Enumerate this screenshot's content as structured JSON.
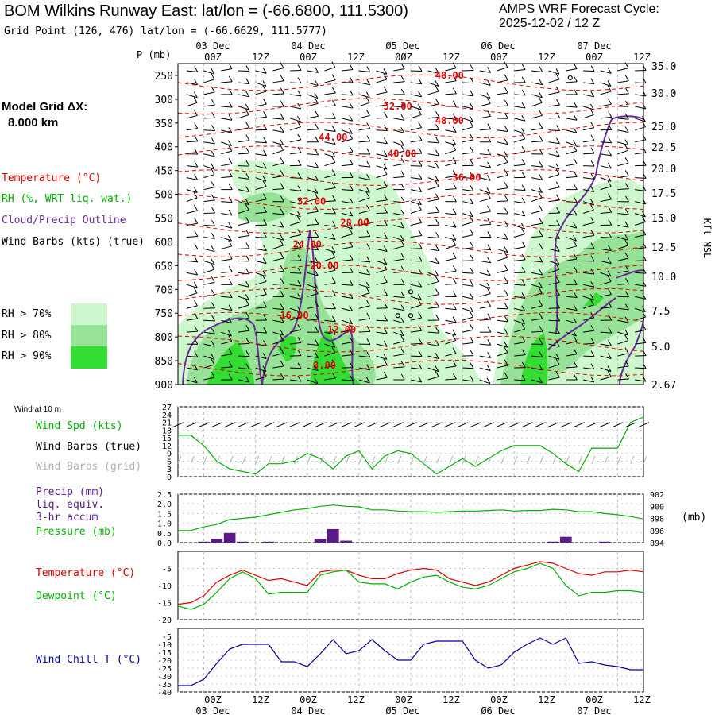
{
  "header": {
    "title": "BOM Wilkins Runway East:  lat/lon = (-66.6800, 111.5300)",
    "gridpoint": "Grid Point (126, 476) lat/lon = (-66.6629, 111.5777)",
    "cycle_line1": "AMPS WRF Forecast Cycle:",
    "cycle_line2": "2025-12-02 / 12  Z"
  },
  "model_grid": {
    "line1": "Model Grid ΔX:",
    "line2": "8.000 km"
  },
  "legend": {
    "temperature": "Temperature (°C)",
    "rh": "RH (%, WRT liq. wat.)",
    "cloud": "Cloud/Precip Outline",
    "wind": "Wind Barbs (kts) (true)",
    "rh70": "RH > 70%",
    "rh80": "RH > 80%",
    "rh90": "RH > 90%"
  },
  "colors": {
    "temperature": "#e00000",
    "rh": "#00b000",
    "cloud": "#6a2a9a",
    "wind": "#000000",
    "grid_wind": "#b0b0b0",
    "rh70": "#cdf7cd",
    "rh80": "#96e296",
    "rh90": "#33dd33",
    "wind_chill": "#0000a0",
    "precip": "#5a1a8a"
  },
  "time_axis": {
    "top_dates": [
      "03 Dec",
      "04 Dec",
      "Ø5 Dec",
      "Ø6 Dec",
      "07 Dec"
    ],
    "ticks": [
      "00Z",
      "12Z",
      "00Z",
      "12Z",
      "ØØZ",
      "12Z",
      "00Z",
      "12Z",
      "00Z",
      "12Z"
    ],
    "bottom_ticks": [
      "00Z",
      "12Z",
      "00Z",
      "12Z",
      "00Z",
      "12Z",
      "00Z",
      "12Z",
      "00Z",
      "12Z"
    ],
    "bottom_dates": [
      "03 Dec",
      "04 Dec",
      "Ø5 Dec",
      "Ø6 Dec",
      "07 Dec"
    ]
  },
  "chart_data": [
    {
      "type": "heatmap",
      "name": "vertical-cross-section",
      "ylabel": "P (mb)",
      "ylabel_right": "Kft MSL",
      "pressure_levels": [
        250,
        300,
        350,
        400,
        450,
        500,
        550,
        600,
        650,
        700,
        750,
        800,
        850,
        900
      ],
      "height_kft": [
        "35.0",
        "30.0",
        "25.0",
        "22.5",
        "20.0",
        "17.5",
        "15.0",
        "12.5",
        "10.0",
        "7.5",
        "5.0",
        "2.67"
      ],
      "temperature_contour_labels": [
        {
          "label": "48.00",
          "t_hours": 63,
          "p": 250
        },
        {
          "label": "52.00",
          "t_hours": 51,
          "p": 315
        },
        {
          "label": "48.00",
          "t_hours": 63,
          "p": 345
        },
        {
          "label": "44.00",
          "t_hours": 36,
          "p": 380
        },
        {
          "label": "40.00",
          "t_hours": 52,
          "p": 415
        },
        {
          "label": "36.00",
          "t_hours": 67,
          "p": 465
        },
        {
          "label": "32.00",
          "t_hours": 31,
          "p": 515
        },
        {
          "label": "28.00",
          "t_hours": 41,
          "p": 560
        },
        {
          "label": "24.00",
          "t_hours": 30,
          "p": 605
        },
        {
          "label": "20.00",
          "t_hours": 34,
          "p": 650
        },
        {
          "label": "16.00",
          "t_hours": 27,
          "p": 755
        },
        {
          "label": "12.00",
          "t_hours": 38,
          "p": 785
        },
        {
          "label": "8.00",
          "t_hours": 34,
          "p": 860
        }
      ]
    },
    {
      "type": "line",
      "name": "wind-10m",
      "title": "Wind at 10 m",
      "series_labels": [
        "Wind Spd (kts)",
        "Wind Barbs (true)",
        "Wind Barbs (grid)"
      ],
      "yticks": [
        "27",
        "24",
        "21",
        "18",
        "15",
        "12",
        "9",
        "6",
        "3",
        "0"
      ],
      "ylim": [
        0,
        27
      ],
      "t_hours": [
        0,
        3,
        6,
        9,
        12,
        15,
        18,
        21,
        24,
        27,
        30,
        33,
        36,
        39,
        42,
        45,
        48,
        51,
        54,
        57,
        60,
        63,
        66,
        69,
        72,
        75,
        78,
        81,
        84,
        87,
        90,
        93,
        96,
        99,
        102,
        105,
        108
      ],
      "wind_speed_kts": [
        16,
        16,
        12,
        6,
        3,
        2,
        1,
        5,
        5,
        6,
        9,
        7,
        3,
        8,
        10,
        3,
        8,
        10,
        9,
        5,
        1,
        4,
        7,
        4,
        7,
        10,
        12,
        12,
        12,
        9,
        5,
        2,
        11,
        11,
        11,
        21,
        23
      ]
    },
    {
      "type": "bar",
      "name": "precip-pressure",
      "series_labels": [
        "Precip (mm)",
        "liq. equiv.",
        "3-hr accum",
        "Pressure (mb)"
      ],
      "precip_yticks": [
        "2.5",
        "2.0",
        "1.5",
        "1.0",
        "0.5",
        "0.0"
      ],
      "pressure_yticks": [
        "902",
        "900",
        "898",
        "896",
        "894"
      ],
      "pressure_unit": "(mb)",
      "t_hours": [
        0,
        3,
        6,
        9,
        12,
        15,
        18,
        21,
        24,
        27,
        30,
        33,
        36,
        39,
        42,
        45,
        48,
        51,
        54,
        57,
        60,
        63,
        66,
        69,
        72,
        75,
        78,
        81,
        84,
        87,
        90,
        93,
        96,
        99,
        102,
        105,
        108
      ],
      "precip_mm": [
        0,
        0,
        0.05,
        0.2,
        0.5,
        0.05,
        0,
        0.05,
        0,
        0,
        0,
        0.2,
        0.7,
        0.1,
        0,
        0,
        0,
        0,
        0,
        0,
        0,
        0,
        0,
        0,
        0,
        0,
        0,
        0,
        0,
        0.05,
        0.3,
        0,
        0,
        0.05,
        0,
        0,
        0
      ],
      "pressure_mb": [
        896,
        896,
        896.6,
        897,
        897.8,
        898,
        898.2,
        898.6,
        899,
        899.4,
        899.6,
        900,
        900.2,
        900,
        899.9,
        899.4,
        899.4,
        899.2,
        899.1,
        899.1,
        899,
        899.1,
        899.2,
        899.2,
        899.3,
        899.4,
        899.2,
        899.3,
        899.3,
        899.5,
        899.4,
        899.1,
        899.1,
        898.8,
        898.6,
        898.3,
        897.9
      ],
      "precip_ylim": [
        0,
        2.5
      ],
      "pressure_ylim": [
        894,
        902
      ]
    },
    {
      "type": "line",
      "name": "temperature-dewpoint",
      "series_labels": [
        "Temperature (°C)",
        "Dewpoint (°C)"
      ],
      "yticks": [
        "-5",
        "-10",
        "-15",
        "-20"
      ],
      "ylim": [
        -20,
        0
      ],
      "t_hours": [
        0,
        3,
        6,
        9,
        12,
        15,
        18,
        21,
        24,
        27,
        30,
        33,
        36,
        39,
        42,
        45,
        48,
        51,
        54,
        57,
        60,
        63,
        66,
        69,
        72,
        75,
        78,
        81,
        84,
        87,
        90,
        93,
        96,
        99,
        102,
        105,
        108
      ],
      "temperature": [
        -15.5,
        -15,
        -13,
        -9,
        -7,
        -5.5,
        -7,
        -8.5,
        -8,
        -9,
        -10,
        -6,
        -5.5,
        -5.5,
        -7,
        -8,
        -8,
        -6.5,
        -5.5,
        -5,
        -5.5,
        -8,
        -9,
        -10,
        -9,
        -7,
        -5,
        -4,
        -3,
        -3.5,
        -5,
        -6.5,
        -7,
        -6,
        -6,
        -5.5,
        -6
      ],
      "dewpoint": [
        -16,
        -17,
        -15.5,
        -12,
        -8,
        -6,
        -8,
        -12.5,
        -12,
        -12,
        -12,
        -7,
        -6,
        -5.5,
        -9,
        -9.5,
        -9.5,
        -11,
        -9,
        -7.5,
        -7,
        -9,
        -10.5,
        -11,
        -10,
        -8,
        -6,
        -5,
        -3.5,
        -5,
        -10,
        -13,
        -12,
        -12,
        -11.5,
        -11.5,
        -12
      ]
    },
    {
      "type": "line",
      "name": "wind-chill",
      "series_labels": [
        "Wind Chill T (°C)"
      ],
      "yticks": [
        "-5",
        "-10",
        "-15",
        "-20",
        "-25",
        "-30",
        "-35",
        "-40"
      ],
      "ylim": [
        -40,
        0
      ],
      "t_hours": [
        0,
        3,
        6,
        9,
        12,
        15,
        18,
        21,
        24,
        27,
        30,
        33,
        36,
        39,
        42,
        45,
        48,
        51,
        54,
        57,
        60,
        63,
        66,
        69,
        72,
        75,
        78,
        81,
        84,
        87,
        90,
        93,
        96,
        99,
        102,
        105,
        108
      ],
      "wind_chill": [
        -36,
        -36,
        -32,
        -22,
        -13,
        -10,
        -10,
        -10,
        -21,
        -21,
        -24,
        -16,
        -7,
        -16,
        -14,
        -7,
        -14,
        -20,
        -20,
        -10,
        -8,
        -8,
        -8,
        -20,
        -25,
        -23,
        -15,
        -10,
        -6,
        -10,
        -6,
        -22,
        -21,
        -23,
        -24,
        -26,
        -26
      ]
    }
  ]
}
